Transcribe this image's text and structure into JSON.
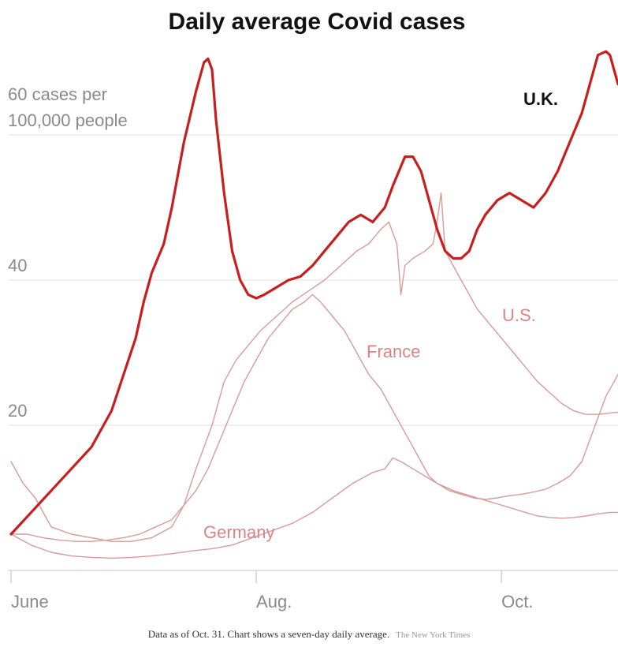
{
  "chart_data": {
    "type": "line",
    "title": "Daily average Covid cases",
    "y_unit_label": [
      "60 cases per",
      "100,000 people"
    ],
    "yticks": [
      20,
      40
    ],
    "ylim": [
      0,
      73
    ],
    "x_ticks": [
      {
        "label": "June",
        "day": 0
      },
      {
        "label": "Aug.",
        "day": 61
      },
      {
        "label": "Oct.",
        "day": 122
      }
    ],
    "xlim": [
      0,
      151
    ],
    "grid": true,
    "note": "Data as of Oct. 31. Chart shows a seven-day daily average.",
    "source": "The New York Times",
    "colors": {
      "uk": "#c81e1e",
      "others": "#d99a9a",
      "others_label": "#d98585"
    },
    "series": [
      {
        "name": "U.K.",
        "points": [
          [
            0,
            5
          ],
          [
            5,
            8
          ],
          [
            10,
            11
          ],
          [
            15,
            14
          ],
          [
            20,
            17
          ],
          [
            25,
            22
          ],
          [
            28,
            27
          ],
          [
            31,
            32
          ],
          [
            33,
            37
          ],
          [
            35,
            41
          ],
          [
            38,
            45
          ],
          [
            40,
            50
          ],
          [
            43,
            59
          ],
          [
            46,
            66
          ],
          [
            48,
            70
          ],
          [
            49,
            70.5
          ],
          [
            50,
            69
          ],
          [
            51,
            62
          ],
          [
            53,
            52
          ],
          [
            55,
            44
          ],
          [
            57,
            40
          ],
          [
            59,
            38
          ],
          [
            61,
            37.5
          ],
          [
            63,
            38
          ],
          [
            66,
            39
          ],
          [
            69,
            40
          ],
          [
            72,
            40.5
          ],
          [
            75,
            42
          ],
          [
            78,
            44
          ],
          [
            81,
            46
          ],
          [
            84,
            48
          ],
          [
            87,
            49
          ],
          [
            90,
            48
          ],
          [
            93,
            50
          ],
          [
            95,
            53
          ],
          [
            98,
            57
          ],
          [
            100,
            57
          ],
          [
            102,
            55
          ],
          [
            104,
            51
          ],
          [
            106,
            47
          ],
          [
            108,
            44
          ],
          [
            110,
            43
          ],
          [
            112,
            43
          ],
          [
            114,
            44
          ],
          [
            116,
            47
          ],
          [
            118,
            49
          ],
          [
            121,
            51
          ],
          [
            124,
            52
          ],
          [
            127,
            51
          ],
          [
            130,
            50
          ],
          [
            133,
            52
          ],
          [
            136,
            55
          ],
          [
            139,
            59
          ],
          [
            142,
            63
          ],
          [
            144,
            67
          ],
          [
            146,
            71
          ],
          [
            148,
            71.5
          ],
          [
            149,
            71
          ],
          [
            150,
            69
          ],
          [
            151,
            67
          ]
        ]
      },
      {
        "name": "U.S.",
        "points": [
          [
            0,
            15
          ],
          [
            3,
            12
          ],
          [
            6,
            10
          ],
          [
            10,
            6
          ],
          [
            15,
            5
          ],
          [
            20,
            4.5
          ],
          [
            25,
            4
          ],
          [
            30,
            4
          ],
          [
            35,
            4.5
          ],
          [
            40,
            6
          ],
          [
            43,
            9
          ],
          [
            46,
            14
          ],
          [
            50,
            20
          ],
          [
            53,
            26
          ],
          [
            56,
            29
          ],
          [
            59,
            31
          ],
          [
            62,
            33
          ],
          [
            66,
            35
          ],
          [
            70,
            37
          ],
          [
            74,
            38.5
          ],
          [
            78,
            40
          ],
          [
            82,
            42
          ],
          [
            86,
            44
          ],
          [
            89,
            45
          ],
          [
            92,
            47
          ],
          [
            94,
            48
          ],
          [
            96,
            45
          ],
          [
            97,
            38
          ],
          [
            98,
            42
          ],
          [
            100,
            43
          ],
          [
            103,
            44
          ],
          [
            105,
            45
          ],
          [
            106,
            48
          ],
          [
            107,
            52
          ],
          [
            108,
            44
          ],
          [
            110,
            42
          ],
          [
            112,
            40
          ],
          [
            114,
            38
          ],
          [
            116,
            36
          ],
          [
            119,
            34
          ],
          [
            122,
            32
          ],
          [
            125,
            30
          ],
          [
            128,
            28
          ],
          [
            131,
            26
          ],
          [
            134,
            24.5
          ],
          [
            137,
            23
          ],
          [
            140,
            22
          ],
          [
            143,
            21.5
          ],
          [
            146,
            21.5
          ],
          [
            149,
            21.7
          ],
          [
            151,
            21.8
          ]
        ]
      },
      {
        "name": "France",
        "points": [
          [
            0,
            5
          ],
          [
            4,
            5
          ],
          [
            8,
            4.5
          ],
          [
            12,
            4.2
          ],
          [
            16,
            4
          ],
          [
            20,
            4
          ],
          [
            24,
            4.2
          ],
          [
            28,
            4.5
          ],
          [
            32,
            5
          ],
          [
            36,
            6
          ],
          [
            40,
            7
          ],
          [
            43,
            9
          ],
          [
            46,
            11
          ],
          [
            49,
            14
          ],
          [
            52,
            18
          ],
          [
            55,
            22
          ],
          [
            58,
            26
          ],
          [
            61,
            29
          ],
          [
            64,
            32
          ],
          [
            67,
            34
          ],
          [
            70,
            36
          ],
          [
            73,
            37
          ],
          [
            75,
            38
          ],
          [
            77,
            37
          ],
          [
            80,
            35
          ],
          [
            83,
            33
          ],
          [
            86,
            30
          ],
          [
            89,
            27
          ],
          [
            92,
            25
          ],
          [
            94,
            23
          ],
          [
            96,
            21
          ],
          [
            98,
            19
          ],
          [
            100,
            17
          ],
          [
            102,
            15
          ],
          [
            104,
            13
          ],
          [
            106,
            12
          ],
          [
            108,
            11.5
          ],
          [
            110,
            11
          ],
          [
            113,
            10.5
          ],
          [
            116,
            10
          ],
          [
            119,
            9.5
          ],
          [
            122,
            9
          ],
          [
            125,
            8.5
          ],
          [
            128,
            8
          ],
          [
            131,
            7.5
          ],
          [
            134,
            7.3
          ],
          [
            137,
            7.2
          ],
          [
            140,
            7.3
          ],
          [
            143,
            7.5
          ],
          [
            146,
            7.8
          ],
          [
            149,
            8
          ],
          [
            151,
            8
          ]
        ]
      },
      {
        "name": "Germany",
        "points": [
          [
            0,
            5
          ],
          [
            5,
            3.5
          ],
          [
            10,
            2.5
          ],
          [
            15,
            2
          ],
          [
            20,
            1.8
          ],
          [
            25,
            1.7
          ],
          [
            30,
            1.8
          ],
          [
            35,
            2
          ],
          [
            40,
            2.3
          ],
          [
            45,
            2.7
          ],
          [
            50,
            3
          ],
          [
            55,
            3.5
          ],
          [
            60,
            4.5
          ],
          [
            65,
            5.5
          ],
          [
            70,
            6.5
          ],
          [
            75,
            8
          ],
          [
            80,
            10
          ],
          [
            85,
            12
          ],
          [
            90,
            13.5
          ],
          [
            93,
            14
          ],
          [
            95,
            15.5
          ],
          [
            97,
            15
          ],
          [
            100,
            14
          ],
          [
            103,
            13
          ],
          [
            106,
            12
          ],
          [
            109,
            11
          ],
          [
            112,
            10.5
          ],
          [
            115,
            10
          ],
          [
            118,
            9.8
          ],
          [
            121,
            10
          ],
          [
            124,
            10.3
          ],
          [
            127,
            10.5
          ],
          [
            130,
            10.8
          ],
          [
            133,
            11.2
          ],
          [
            136,
            12
          ],
          [
            139,
            13
          ],
          [
            142,
            15
          ],
          [
            144,
            18
          ],
          [
            146,
            21
          ],
          [
            148,
            24
          ],
          [
            150,
            26
          ],
          [
            151,
            27
          ]
        ]
      }
    ],
    "labels": {
      "uk": "U.K.",
      "us": "U.S.",
      "france": "France",
      "germany": "Germany"
    }
  }
}
